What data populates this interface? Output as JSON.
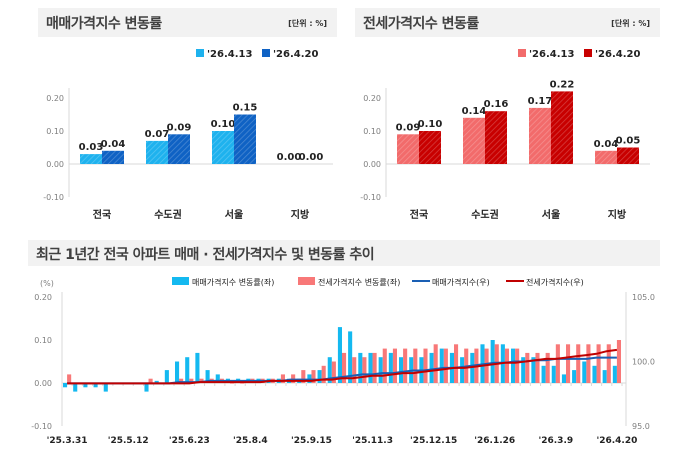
{
  "sales_panel": {
    "title": "매매가격지수 변동률",
    "unit": "[단위 : %]"
  },
  "jeonse_panel": {
    "title": "전세가격지수 변동률",
    "unit": "[단위 : %]"
  },
  "trend_panel": {
    "title": "최근 1년간 전국 아파트 매매 · 전세가격지수 및 변동률 추이"
  },
  "chart_data": [
    {
      "type": "bar",
      "title": "매매가격지수 변동률",
      "categories": [
        "전국",
        "수도권",
        "서울",
        "지방"
      ],
      "series": [
        {
          "name": "'26.4.13",
          "values": [
            0.03,
            0.07,
            0.1,
            0.0
          ],
          "color": "#1eb2ee"
        },
        {
          "name": "'26.4.20",
          "values": [
            0.04,
            0.09,
            0.15,
            0.0
          ],
          "color": "#0f62c4"
        }
      ],
      "ylim": [
        -0.1,
        0.2
      ],
      "yticks": [
        "0.20",
        "0.10",
        "0.00",
        "-0.10"
      ],
      "legend": "top-right",
      "grid": false
    },
    {
      "type": "bar",
      "title": "전세가격지수 변동률",
      "categories": [
        "전국",
        "수도권",
        "서울",
        "지방"
      ],
      "series": [
        {
          "name": "'26.4.13",
          "values": [
            0.09,
            0.14,
            0.17,
            0.04
          ],
          "color": "#f26b6b"
        },
        {
          "name": "'26.4.20",
          "values": [
            0.1,
            0.16,
            0.22,
            0.05
          ],
          "color": "#c80000"
        }
      ],
      "ylim": [
        -0.1,
        0.2
      ],
      "yticks": [
        "0.20",
        "0.10",
        "0.00",
        "-0.10"
      ],
      "legend": "top-right",
      "grid": false
    },
    {
      "type": "bar+line",
      "title": "최근 1년간 전국 아파트 매매 · 전세가격지수 및 변동률 추이",
      "ylabel_left": "(%)",
      "ylim_left": [
        -0.1,
        0.2
      ],
      "yticks_left": [
        "0.20",
        "0.10",
        "0.00",
        "-0.10"
      ],
      "ylim_right": [
        95.0,
        105.0
      ],
      "yticks_right": [
        "105.0",
        "100.0",
        "95.0"
      ],
      "xtick_labels": [
        "'25.3.31",
        "'25.5.12",
        "'25.6.23",
        "'25.8.4",
        "'25.9.15",
        "'25.11.3",
        "'25.12.15",
        "'26.1.26",
        "'26.3.9",
        "'26.4.20"
      ],
      "legend": "top",
      "series": [
        {
          "name": "매매가격지수 변동률(좌)",
          "kind": "bar",
          "axis": "left",
          "color": "#14b9f0",
          "values": [
            -0.01,
            -0.02,
            -0.01,
            -0.01,
            -0.02,
            0.0,
            0.0,
            0.0,
            -0.02,
            0.005,
            0.03,
            0.05,
            0.06,
            0.07,
            0.03,
            0.02,
            0.01,
            0.01,
            0.01,
            0.01,
            0.01,
            0.01,
            0.01,
            0.01,
            0.02,
            0.03,
            0.06,
            0.13,
            0.12,
            0.07,
            0.07,
            0.06,
            0.07,
            0.06,
            0.06,
            0.06,
            0.07,
            0.08,
            0.07,
            0.06,
            0.07,
            0.09,
            0.1,
            0.09,
            0.08,
            0.06,
            0.06,
            0.04,
            0.04,
            0.02,
            0.03,
            0.05,
            0.04,
            0.03,
            0.04
          ]
        },
        {
          "name": "전세가격지수 변동률(좌)",
          "kind": "bar",
          "axis": "left",
          "color": "#f87878",
          "values": [
            0.02,
            0.0,
            0.0,
            0.0,
            0.0,
            0.0,
            0.0,
            0.0,
            0.01,
            0.0,
            0.0,
            0.01,
            0.01,
            0.01,
            0.01,
            0.01,
            0.0,
            0.0,
            0.01,
            0.01,
            0.01,
            0.02,
            0.02,
            0.03,
            0.03,
            0.04,
            0.05,
            0.07,
            0.06,
            0.06,
            0.07,
            0.08,
            0.08,
            0.08,
            0.08,
            0.08,
            0.09,
            0.08,
            0.09,
            0.08,
            0.08,
            0.08,
            0.09,
            0.08,
            0.08,
            0.07,
            0.07,
            0.07,
            0.09,
            0.09,
            0.09,
            0.09,
            0.09,
            0.09,
            0.1
          ]
        },
        {
          "name": "매매가격지수(우)",
          "kind": "line",
          "axis": "right",
          "color": "#1a5fb4",
          "values": [
            98.3,
            98.3,
            98.3,
            98.3,
            98.3,
            98.3,
            98.3,
            98.3,
            98.3,
            98.3,
            98.3,
            98.4,
            98.4,
            98.4,
            98.5,
            98.5,
            98.5,
            98.5,
            98.5,
            98.5,
            98.5,
            98.5,
            98.6,
            98.6,
            98.6,
            98.6,
            98.7,
            98.8,
            98.9,
            99.0,
            99.0,
            99.1,
            99.1,
            99.2,
            99.3,
            99.3,
            99.4,
            99.5,
            99.5,
            99.6,
            99.7,
            99.8,
            99.9,
            99.9,
            100.0,
            100.0,
            100.1,
            100.1,
            100.2,
            100.2,
            100.2,
            100.2,
            100.3,
            100.3,
            100.3
          ]
        },
        {
          "name": "전세가격지수(우)",
          "kind": "line",
          "axis": "right",
          "color": "#c00000",
          "values": [
            98.3,
            98.3,
            98.3,
            98.3,
            98.3,
            98.3,
            98.3,
            98.3,
            98.3,
            98.3,
            98.3,
            98.3,
            98.3,
            98.4,
            98.4,
            98.4,
            98.4,
            98.4,
            98.4,
            98.4,
            98.5,
            98.5,
            98.5,
            98.5,
            98.5,
            98.6,
            98.6,
            98.7,
            98.7,
            98.8,
            98.9,
            98.9,
            99.0,
            99.1,
            99.1,
            99.2,
            99.3,
            99.4,
            99.5,
            99.5,
            99.6,
            99.7,
            99.8,
            99.9,
            99.9,
            100.0,
            100.1,
            100.2,
            100.2,
            100.3,
            100.4,
            100.5,
            100.6,
            100.8,
            100.9
          ]
        }
      ]
    }
  ]
}
